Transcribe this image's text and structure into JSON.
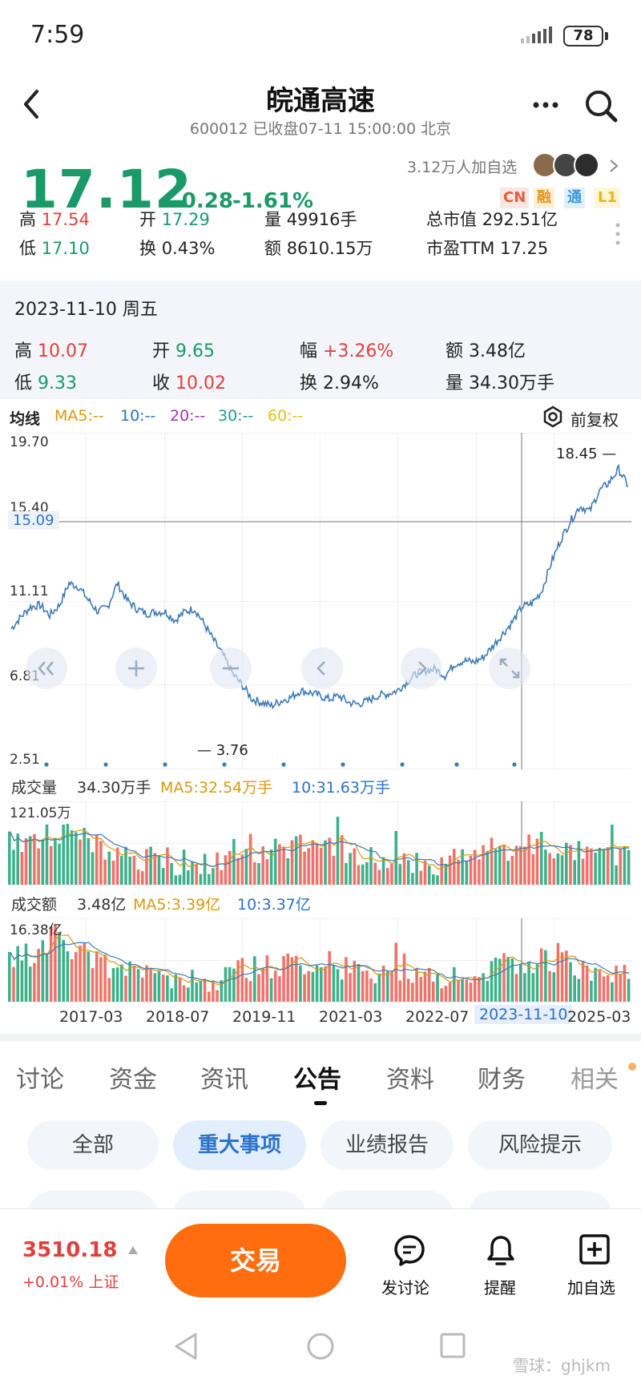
{
  "status_bar": {
    "time": "7:59",
    "battery": "78"
  },
  "header": {
    "title": "皖通高速",
    "subtitle": "600012 已收盘07-11 15:00:00 北京"
  },
  "quote": {
    "price": "17.12",
    "change": "-0.28",
    "change_pct": "-1.61%",
    "watchers": "3.12万人加自选",
    "badges": [
      "CN",
      "融",
      "通",
      "L1"
    ],
    "colors": {
      "down": "#1a9a68",
      "up": "#e0403c"
    },
    "stats": [
      {
        "label": "高",
        "value": "17.54",
        "tone": "red"
      },
      {
        "label": "开",
        "value": "17.29",
        "tone": "green"
      },
      {
        "label": "量",
        "value": "49916手",
        "tone": "plain"
      },
      {
        "label": "总市值",
        "value": "292.51亿",
        "tone": "plain"
      },
      {
        "label": "低",
        "value": "17.10",
        "tone": "green"
      },
      {
        "label": "换",
        "value": "0.43%",
        "tone": "plain"
      },
      {
        "label": "额",
        "value": "8610.15万",
        "tone": "plain"
      },
      {
        "label": "市盈TTM",
        "value": "17.25",
        "tone": "plain"
      }
    ]
  },
  "selected_day": {
    "date": "2023-11-10 周五",
    "stats": [
      {
        "label": "高",
        "value": "10.07",
        "tone": "red"
      },
      {
        "label": "开",
        "value": "9.65",
        "tone": "green"
      },
      {
        "label": "幅",
        "value": "+3.26%",
        "tone": "red"
      },
      {
        "label": "额",
        "value": "3.48亿",
        "tone": "plain"
      },
      {
        "label": "低",
        "value": "9.33",
        "tone": "green"
      },
      {
        "label": "收",
        "value": "10.02",
        "tone": "red"
      },
      {
        "label": "换",
        "value": "2.94%",
        "tone": "plain"
      },
      {
        "label": "量",
        "value": "34.30万手",
        "tone": "plain"
      }
    ]
  },
  "ma_bar": {
    "label": "均线",
    "items": [
      "MA5:--",
      "10:--",
      "20:--",
      "30:--",
      "60:--"
    ],
    "adjust": "前复权"
  },
  "chart_data": {
    "type": "line",
    "y_ticks": [
      "19.70",
      "15.40",
      "11.11",
      "6.81",
      "2.51"
    ],
    "ylim": [
      2.51,
      19.7
    ],
    "crosshair_value": "15.09",
    "max_label": "18.45",
    "min_label": "3.76",
    "x_labels": [
      "2017-03",
      "2018-07",
      "2019-11",
      "2021-03",
      "2022-07",
      "2023-11-10",
      "2025-03"
    ],
    "values": [
      8.6,
      9.3,
      9.9,
      10.0,
      9.4,
      10.0,
      11.3,
      11.1,
      10.3,
      9.6,
      9.9,
      11.3,
      10.3,
      9.8,
      9.5,
      9.6,
      9.6,
      9.1,
      9.6,
      9.8,
      8.9,
      7.9,
      7.0,
      5.9,
      5.2,
      4.4,
      4.2,
      4.0,
      4.3,
      4.5,
      4.9,
      4.8,
      4.6,
      4.4,
      4.6,
      4.2,
      4.1,
      4.3,
      4.6,
      4.7,
      4.9,
      5.4,
      5.9,
      6.1,
      6.2,
      5.8,
      6.5,
      6.7,
      6.6,
      6.9,
      7.6,
      8.3,
      9.0,
      9.9,
      10.1,
      10.8,
      12.5,
      13.9,
      15.0,
      15.9,
      15.6,
      16.8,
      17.3,
      18.1,
      17.1
    ],
    "volume": {
      "label": "成交量",
      "value": "34.30万手",
      "ma5": "MA5:32.54万手",
      "ma10": "10:31.63万手",
      "y_max": "121.05万"
    },
    "amount": {
      "label": "成交额",
      "value": "3.48亿",
      "ma5": "MA5:3.39亿",
      "ma10": "10:3.37亿",
      "y_max": "16.38亿"
    }
  },
  "tabs": {
    "items": [
      "讨论",
      "资金",
      "资讯",
      "公告",
      "资料",
      "财务",
      "相关"
    ],
    "active": 3
  },
  "chips": [
    "全部",
    "重大事项",
    "业绩报告",
    "风险提示"
  ],
  "bottom_bar": {
    "index_value": "3510.18",
    "index_change": "+0.01% 上证",
    "trade": "交易",
    "actions": [
      "发讨论",
      "提醒",
      "加自选"
    ]
  },
  "watermark": "雪球：ghjkm"
}
